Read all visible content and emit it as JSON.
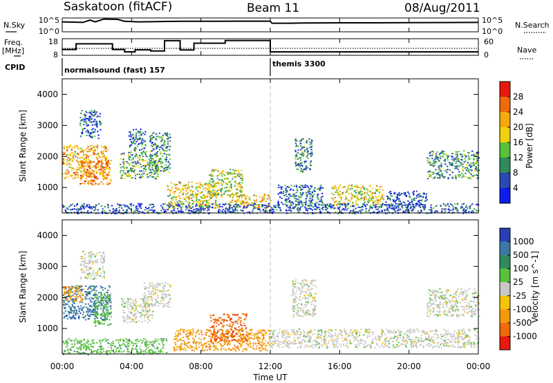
{
  "header": {
    "station": "Saskatoon (fitACF)",
    "beam": "Beam 11",
    "date": "08/Aug/2011"
  },
  "side_labels": {
    "nsky": "N.Sky",
    "freq_line1": "Freq.",
    "freq_line2": "[MHz]",
    "cpid": "CPID",
    "nsearch": "N.Search",
    "nave": "Nave"
  },
  "cpid_labels": [
    {
      "text": "normalsound (fast) 157",
      "start_hour": 0
    },
    {
      "text": "themis 3300",
      "start_hour": 12
    }
  ],
  "colors": {
    "power": [
      "#0b1df0",
      "#2a49b3",
      "#2f8a5c",
      "#56c23a",
      "#f1d10f",
      "#f5a90c",
      "#ee6a0b",
      "#e61a0d"
    ],
    "velocity": [
      "#2a3fb5",
      "#3a78a8",
      "#2f8a5c",
      "#56c23a",
      "#c8c8c8",
      "#f5c40a",
      "#f39a0c",
      "#ef6a0b",
      "#e61a0d"
    ]
  },
  "chart_data": [
    {
      "type": "line",
      "name": "nsky-nsearch",
      "x_ticks": [
        "00:00",
        "04:00",
        "08:00",
        "12:00",
        "16:00",
        "20:00",
        "00:00"
      ],
      "xlim": [
        0,
        24
      ],
      "left_ticks": [
        "10^5",
        "10^0"
      ],
      "right_ticks": [
        "10^5",
        "10^0"
      ],
      "nsky_series": [
        [
          0,
          0.72
        ],
        [
          0.6,
          0.7
        ],
        [
          1.2,
          0.68
        ],
        [
          1.6,
          0.85
        ],
        [
          1.9,
          0.72
        ],
        [
          2.4,
          0.92
        ],
        [
          3.2,
          0.9
        ],
        [
          3.6,
          0.76
        ],
        [
          4.4,
          0.72
        ],
        [
          5.2,
          0.73
        ],
        [
          6,
          0.75
        ],
        [
          7,
          0.76
        ],
        [
          8,
          0.76
        ],
        [
          9,
          0.76
        ],
        [
          10,
          0.77
        ],
        [
          11,
          0.77
        ],
        [
          12,
          0.77
        ],
        [
          12.1,
          0.62
        ],
        [
          13,
          0.62
        ],
        [
          14,
          0.64
        ],
        [
          16,
          0.65
        ],
        [
          18,
          0.65
        ],
        [
          20,
          0.66
        ],
        [
          22,
          0.67
        ],
        [
          24,
          0.68
        ]
      ]
    },
    {
      "type": "line",
      "name": "freq-nave",
      "ylabel": "Freq. [MHz]",
      "ylim_left": [
        8,
        18
      ],
      "left_ticks": [
        8,
        18
      ],
      "right_ticks": [
        0,
        60
      ],
      "freq_series": [
        [
          0,
          11.5
        ],
        [
          0.8,
          11.5
        ],
        [
          0.8,
          14.9
        ],
        [
          2.9,
          14.9
        ],
        [
          2.9,
          11.5
        ],
        [
          3.6,
          11.5
        ],
        [
          3.6,
          10.1
        ],
        [
          4.2,
          10.1
        ],
        [
          4.2,
          11.3
        ],
        [
          5.1,
          11.3
        ],
        [
          5.1,
          10.6
        ],
        [
          5.9,
          10.6
        ],
        [
          5.9,
          16.8
        ],
        [
          6.8,
          16.8
        ],
        [
          6.8,
          11.2
        ],
        [
          7.6,
          11.2
        ],
        [
          7.6,
          15.3
        ],
        [
          9.4,
          15.3
        ],
        [
          9.4,
          16.9
        ],
        [
          12,
          16.9
        ],
        [
          12,
          10.1
        ],
        [
          24,
          10.1
        ]
      ],
      "nave_level": 12.2
    },
    {
      "type": "heatmap",
      "name": "power",
      "ylabel": "Slant Range [km]",
      "colorbar_label": "Power [dB]",
      "yticks": [
        1000,
        2000,
        3000,
        4000
      ],
      "ylim": [
        180,
        4500
      ],
      "xlim": [
        0,
        24
      ],
      "colorbar_ticks": [
        4,
        8,
        12,
        16,
        20,
        24,
        28
      ],
      "colorbar_range": [
        0,
        32
      ],
      "regions": [
        {
          "t0": 0,
          "t1": 2.6,
          "r0": 1300,
          "r1": 2400,
          "v": 22
        },
        {
          "t0": 1.0,
          "t1": 2.8,
          "r0": 1100,
          "r1": 1900,
          "v": 24
        },
        {
          "t0": 1.0,
          "t1": 2.2,
          "r0": 2600,
          "r1": 3500,
          "v": 6
        },
        {
          "t0": 3.3,
          "t1": 5.5,
          "r0": 1300,
          "r1": 2200,
          "v": 12
        },
        {
          "t0": 3.8,
          "t1": 4.8,
          "r0": 2200,
          "r1": 2900,
          "v": 8
        },
        {
          "t0": 5.0,
          "t1": 6.2,
          "r0": 1500,
          "r1": 2800,
          "v": 10
        },
        {
          "t0": 6.0,
          "t1": 9.0,
          "r0": 350,
          "r1": 1200,
          "v": 18
        },
        {
          "t0": 8.4,
          "t1": 10.4,
          "r0": 700,
          "r1": 1600,
          "v": 16
        },
        {
          "t0": 9.6,
          "t1": 12.0,
          "r0": 350,
          "r1": 800,
          "v": 20
        },
        {
          "t0": 12.4,
          "t1": 15.0,
          "r0": 450,
          "r1": 1100,
          "v": 8
        },
        {
          "t0": 13.4,
          "t1": 14.4,
          "r0": 1500,
          "r1": 2600,
          "v": 10
        },
        {
          "t0": 15.5,
          "t1": 18.5,
          "r0": 450,
          "r1": 1100,
          "v": 18
        },
        {
          "t0": 18.6,
          "t1": 21.0,
          "r0": 350,
          "r1": 900,
          "v": 6
        },
        {
          "t0": 21.0,
          "t1": 24,
          "r0": 1300,
          "r1": 2200,
          "v": 10
        },
        {
          "t0": 0,
          "t1": 24,
          "r0": 180,
          "r1": 500,
          "v": 6
        }
      ]
    },
    {
      "type": "heatmap",
      "name": "velocity",
      "xlabel": "Time UT",
      "ylabel": "Slant Range [km]",
      "colorbar_label": "Velocity [m s^-1]",
      "yticks": [
        1000,
        2000,
        3000,
        4000
      ],
      "ylim": [
        180,
        4500
      ],
      "xlim": [
        0,
        24
      ],
      "x_ticks": [
        "00:00",
        "04:00",
        "08:00",
        "12:00",
        "16:00",
        "20:00",
        "00:00"
      ],
      "colorbar_ticks": [
        "1000",
        "500",
        "100",
        "25",
        "-25",
        "-100",
        "-500",
        "-1000"
      ],
      "regions": [
        {
          "t0": 0,
          "t1": 2.8,
          "r0": 1300,
          "r1": 2400,
          "c": 1
        },
        {
          "t0": 1.8,
          "t1": 2.8,
          "r0": 1100,
          "r1": 2200,
          "c": 3
        },
        {
          "t0": 0,
          "t1": 1.2,
          "r0": 1900,
          "r1": 2400,
          "c": 6
        },
        {
          "t0": 1.0,
          "t1": 2.4,
          "r0": 2600,
          "r1": 3500,
          "c": 4
        },
        {
          "t0": 3.4,
          "t1": 5.2,
          "r0": 1200,
          "r1": 2000,
          "c": 4
        },
        {
          "t0": 4.6,
          "t1": 6.2,
          "r0": 1700,
          "r1": 2500,
          "c": 4
        },
        {
          "t0": 6.4,
          "t1": 12.0,
          "r0": 300,
          "r1": 1000,
          "c": 6
        },
        {
          "t0": 8.5,
          "t1": 10.6,
          "r0": 600,
          "r1": 1500,
          "c": 7
        },
        {
          "t0": 12.0,
          "t1": 24,
          "r0": 400,
          "r1": 1000,
          "c": 4
        },
        {
          "t0": 13.2,
          "t1": 14.6,
          "r0": 1400,
          "r1": 2600,
          "c": 4
        },
        {
          "t0": 21.0,
          "t1": 24,
          "r0": 1400,
          "r1": 2300,
          "c": 4
        },
        {
          "t0": 0,
          "t1": 6.0,
          "r0": 180,
          "r1": 700,
          "c": 3
        }
      ]
    }
  ]
}
